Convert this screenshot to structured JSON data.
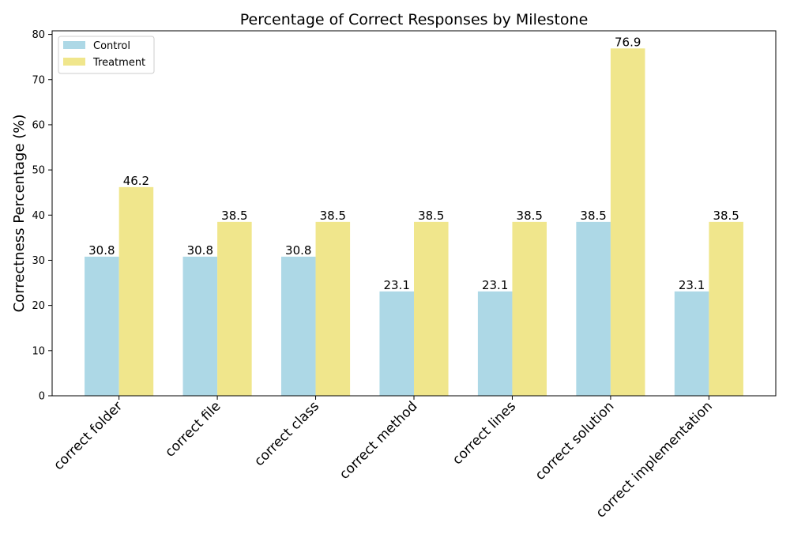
{
  "chart_data": {
    "type": "bar",
    "title": "Percentage of Correct Responses by Milestone",
    "xlabel": "",
    "ylabel": "Correctness Percentage (%)",
    "categories": [
      "correct folder",
      "correct file",
      "correct class",
      "correct method",
      "correct lines",
      "correct solution",
      "correct implementation"
    ],
    "series": [
      {
        "name": "Control",
        "color": "#add8e6",
        "values": [
          30.8,
          30.8,
          30.8,
          23.1,
          23.1,
          38.5,
          23.1
        ]
      },
      {
        "name": "Treatment",
        "color": "#f0e68c",
        "values": [
          46.2,
          38.5,
          38.5,
          38.5,
          38.5,
          76.9,
          38.5
        ]
      }
    ],
    "ylim": [
      0,
      80.8
    ],
    "yticks": [
      0,
      10,
      20,
      30,
      40,
      50,
      60,
      70,
      80
    ],
    "grid": false,
    "legend_position": "top-left",
    "data_labels": true
  }
}
